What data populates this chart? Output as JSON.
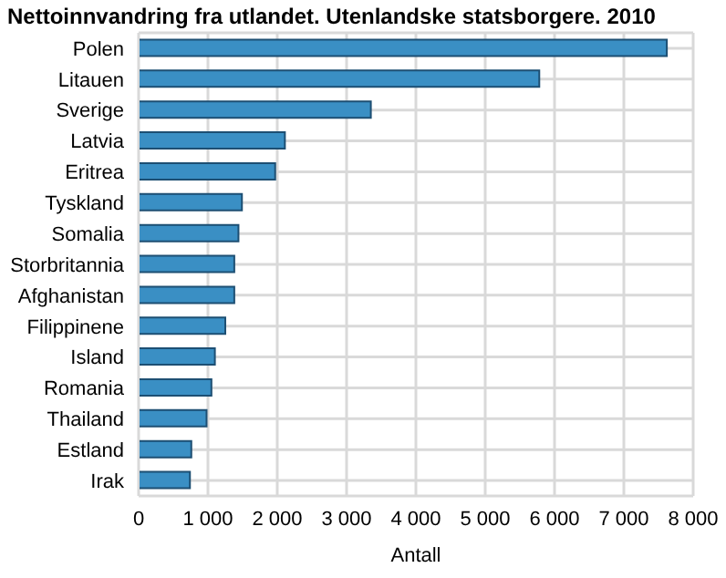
{
  "chart_data": {
    "type": "bar",
    "orientation": "horizontal",
    "title": "Nettoinnvandring fra utlandet. Utenlandske statsborgere. 2010",
    "xlabel": "Antall",
    "categories": [
      "Polen",
      "Litauen",
      "Sverige",
      "Latvia",
      "Eritrea",
      "Tyskland",
      "Somalia",
      "Storbritannia",
      "Afghanistan",
      "Filippinene",
      "Island",
      "Romania",
      "Thailand",
      "Estland",
      "Irak"
    ],
    "values": [
      7620,
      5780,
      3350,
      2110,
      1970,
      1490,
      1440,
      1380,
      1380,
      1250,
      1100,
      1050,
      980,
      760,
      740
    ],
    "color": "#3a8fc4",
    "xlim": [
      0,
      8000
    ],
    "xticks": [
      {
        "value": 0,
        "label": "0"
      },
      {
        "value": 1000,
        "label": "1 000"
      },
      {
        "value": 2000,
        "label": "2 000"
      },
      {
        "value": 3000,
        "label": "3 000"
      },
      {
        "value": 4000,
        "label": "4 000"
      },
      {
        "value": 5000,
        "label": "5 000"
      },
      {
        "value": 6000,
        "label": "6 000"
      },
      {
        "value": 7000,
        "label": "7 000"
      },
      {
        "value": 8000,
        "label": "8 000"
      }
    ],
    "grid": true
  }
}
